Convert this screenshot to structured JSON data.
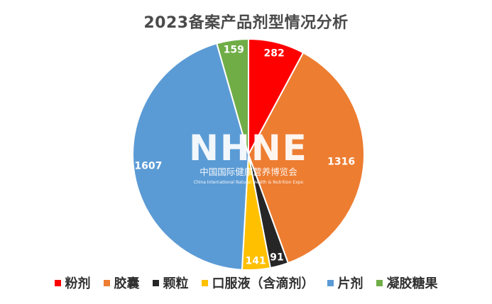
{
  "chart_data": {
    "type": "pie",
    "title": "2023备案产品剂型情况分析",
    "categories": [
      "粉剂",
      "胶囊",
      "颗粒",
      "口服液（含滴剂）",
      "片剂",
      "凝胶糖果"
    ],
    "values": [
      282,
      1316,
      91,
      141,
      1607,
      159
    ],
    "colors": [
      "#ff0000",
      "#ed7d31",
      "#262626",
      "#ffc000",
      "#5b9bd5",
      "#70ad47"
    ],
    "label_colors": [
      "#ffffff",
      "#ffffff",
      "#ffffff",
      "#ffffff",
      "#ffffff",
      "#ffffff"
    ],
    "start_angle_deg": 0,
    "direction": "clockwise",
    "legend_position": "bottom"
  },
  "watermark": {
    "logo": "NHNE",
    "cn": "中国国际健康营养博览会",
    "en": "China International Natural Health & Nutrition Expo"
  }
}
